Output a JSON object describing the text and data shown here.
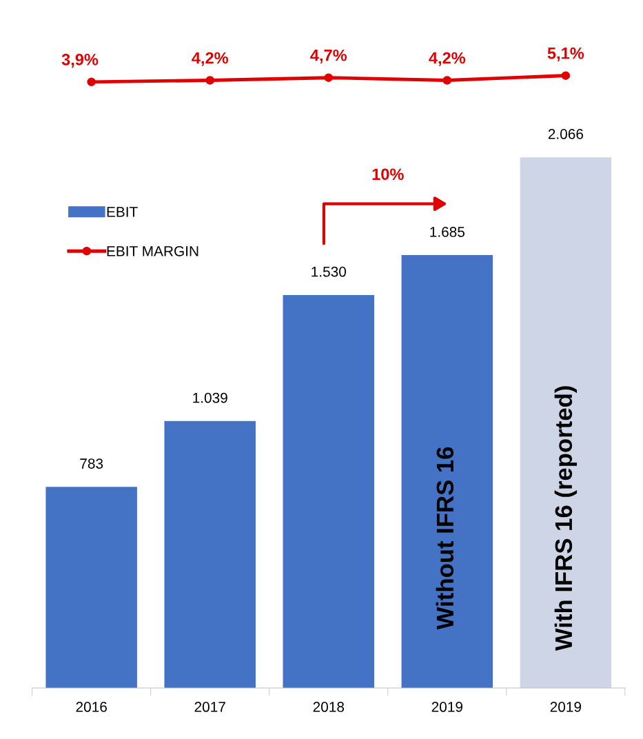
{
  "chart_data": [
    {
      "type": "line",
      "categories": [
        null,
        null,
        null,
        null,
        null
      ],
      "tick_labels": false,
      "series": [
        {
          "name": "EBIT MARGIN",
          "color": "#e00000",
          "marker": "circle",
          "values": [
            3.9,
            4.2,
            4.7,
            4.2,
            5.1
          ],
          "value_labels": [
            "3,9%",
            "4,2%",
            "4,7%",
            "4,2%",
            "5,1%"
          ]
        }
      ]
    },
    {
      "type": "bar",
      "categories": [
        "2016",
        "2017",
        "2018",
        "2019",
        "2019"
      ],
      "tick_labels": "x",
      "grid": false,
      "legend": "left",
      "series": [
        {
          "name": "EBIT",
          "type": "bar",
          "colors": [
            "#4472c4",
            "#4472c4",
            "#4472c4",
            "#4472c4",
            "#cdd5e6"
          ],
          "color": "#4472c4",
          "values": [
            783,
            1039,
            1530,
            1685,
            2066
          ],
          "value_labels": [
            "783",
            "1.039",
            "1.530",
            "1.685",
            "2.066"
          ]
        }
      ],
      "annotations": [
        "10%",
        "Without IFRS 16",
        "With IFRS 16 (reported)"
      ]
    }
  ]
}
